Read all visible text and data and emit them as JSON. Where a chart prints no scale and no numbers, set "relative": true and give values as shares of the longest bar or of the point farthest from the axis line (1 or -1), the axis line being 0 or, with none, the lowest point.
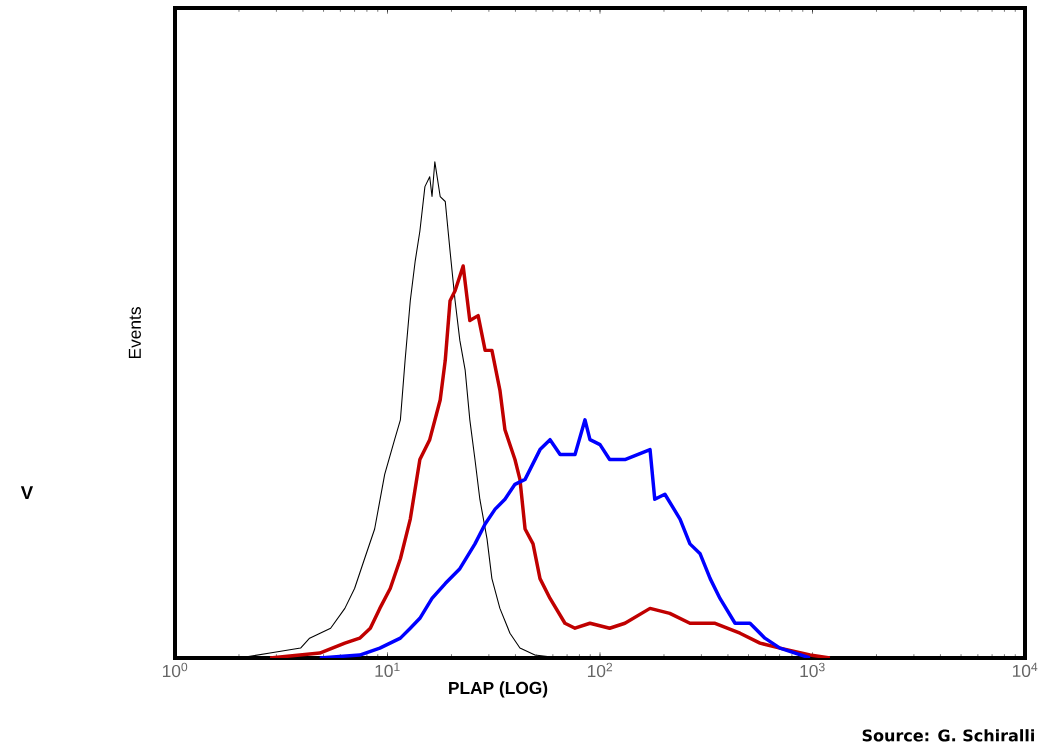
{
  "chart_data": {
    "type": "line",
    "relative": true,
    "log": "x",
    "xlabel": "PLAP (LOG)",
    "ylabel": "Events",
    "xlim": [
      1,
      10000
    ],
    "xticks": [
      {
        "value": 1,
        "label": "10$^{0}$"
      },
      {
        "value": 10,
        "label": "10$^{1}$"
      },
      {
        "value": 100,
        "label": "10$^{2}$"
      },
      {
        "value": 1000,
        "label": "10$^{3}$"
      },
      {
        "value": 10000,
        "label": "10$^{4}$"
      }
    ],
    "grid": false,
    "marker": "none",
    "line_style": "solid",
    "annotations": [
      "V",
      "Source: G. Schiralli"
    ],
    "series": [
      {
        "color": "#000000",
        "x": [
          2.0,
          2.8,
          3.9,
          4.3,
          5.4,
          6.3,
          7.0,
          7.8,
          8.7,
          9.7,
          10.8,
          11.5,
          12.1,
          12.8,
          13.5,
          14.2,
          15.0,
          15.8,
          16.2,
          16.7,
          17.7,
          18.7,
          19.7,
          20.8,
          21.9,
          23.2,
          24.4,
          25.8,
          27.2,
          29.4,
          31.0,
          33.8,
          37.7,
          42.0,
          49.4,
          64.9
        ],
        "values": [
          0,
          0.01,
          0.02,
          0.04,
          0.06,
          0.1,
          0.14,
          0.2,
          0.26,
          0.37,
          0.44,
          0.48,
          0.6,
          0.72,
          0.8,
          0.86,
          0.95,
          0.97,
          0.93,
          1.0,
          0.93,
          0.92,
          0.82,
          0.72,
          0.64,
          0.58,
          0.48,
          0.4,
          0.32,
          0.24,
          0.16,
          0.1,
          0.05,
          0.02,
          0.006,
          0
        ]
      },
      {
        "color": "#c00000",
        "x": [
          2.8,
          4.8,
          6.3,
          7.4,
          8.3,
          9.2,
          10.3,
          11.5,
          12.8,
          14.2,
          15.8,
          17.7,
          18.7,
          19.7,
          20.8,
          22.7,
          24.4,
          26.7,
          28.8,
          31.0,
          33.8,
          35.7,
          39.8,
          42.0,
          44.4,
          48.4,
          52.2,
          58.2,
          68.4,
          76.3,
          89.7,
          111,
          131,
          172,
          213,
          265,
          348,
          456,
          566,
          703,
          973,
          1208
        ],
        "values": [
          0,
          0.01,
          0.03,
          0.04,
          0.06,
          0.1,
          0.14,
          0.2,
          0.28,
          0.4,
          0.44,
          0.52,
          0.6,
          0.72,
          0.74,
          0.79,
          0.68,
          0.69,
          0.62,
          0.62,
          0.54,
          0.46,
          0.4,
          0.36,
          0.26,
          0.23,
          0.16,
          0.12,
          0.07,
          0.06,
          0.07,
          0.06,
          0.07,
          0.1,
          0.09,
          0.07,
          0.07,
          0.05,
          0.03,
          0.02,
          0.006,
          0
        ]
      },
      {
        "color": "#0000ff",
        "x": [
          4.8,
          7.4,
          9.2,
          11.5,
          12.8,
          14.2,
          16.2,
          18.7,
          21.9,
          25.8,
          28.8,
          32.1,
          35.7,
          39.8,
          44.4,
          52.2,
          58.2,
          64.9,
          76.3,
          85.0,
          89.7,
          100,
          111,
          131,
          172,
          181,
          202,
          238,
          265,
          296,
          330,
          367,
          432,
          508,
          597,
          703,
          973
        ],
        "values": [
          0,
          0.006,
          0.02,
          0.04,
          0.06,
          0.08,
          0.12,
          0.15,
          0.18,
          0.23,
          0.27,
          0.3,
          0.32,
          0.35,
          0.36,
          0.42,
          0.44,
          0.41,
          0.41,
          0.48,
          0.44,
          0.43,
          0.4,
          0.4,
          0.42,
          0.32,
          0.33,
          0.28,
          0.23,
          0.21,
          0.16,
          0.12,
          0.07,
          0.07,
          0.04,
          0.02,
          0
        ]
      }
    ]
  }
}
